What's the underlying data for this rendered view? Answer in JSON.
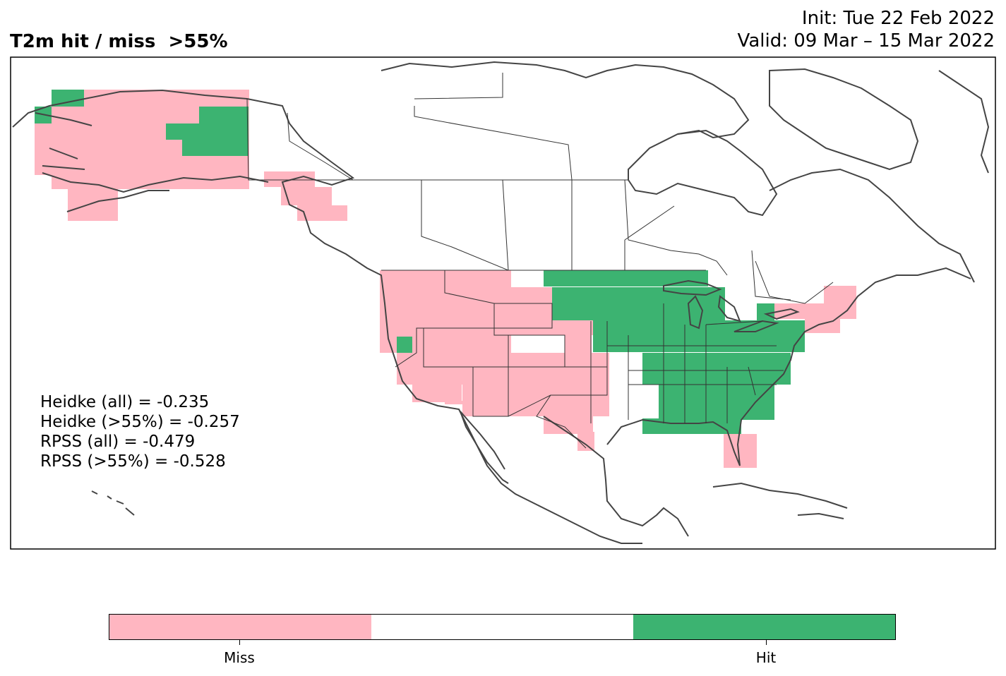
{
  "header": {
    "title": "T2m hit / miss  >55%",
    "init": "Init: Tue 22 Feb 2022",
    "valid": "Valid: 09 Mar – 15 Mar 2022"
  },
  "stats": [
    "Heidke (all) = -0.235",
    "Heidke (>55%) = -0.257",
    "RPSS (all) = -0.479",
    "RPSS (>55%) = -0.528"
  ],
  "colors": {
    "miss": "#ffb6c1",
    "neutral": "#ffffff",
    "hit": "#3cb371",
    "coast": "#444444",
    "border": "#333333"
  },
  "colorbar": {
    "labels": [
      "Miss",
      "Hit"
    ]
  }
}
